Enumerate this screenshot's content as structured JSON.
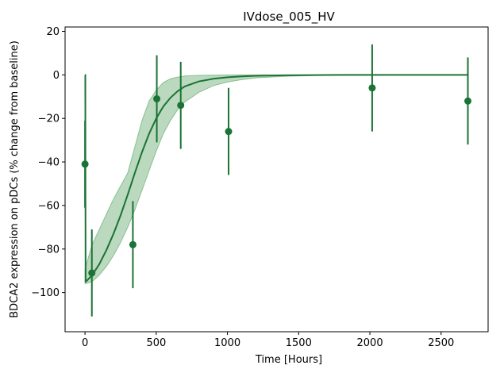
{
  "chart_data": {
    "type": "scatter",
    "title": "IVdose_005_HV",
    "xlabel": "Time [Hours]",
    "ylabel": "BDCA2 expression on pDCs (% change from baseline)",
    "xlim": [
      -140,
      2830
    ],
    "ylim": [
      -118,
      22
    ],
    "xticks": [
      0,
      500,
      1000,
      1500,
      2000,
      2500
    ],
    "yticks": [
      -100,
      -80,
      -60,
      -40,
      -20,
      0,
      20
    ],
    "grid": false,
    "colors": {
      "observed": "#1b7335",
      "fit_line": "#1b7335",
      "ci_band": "#2e8b3a"
    },
    "observed": {
      "x": [
        0,
        48,
        336,
        504,
        672,
        1008,
        2016,
        2688
      ],
      "y": [
        -41,
        -91,
        -78,
        -11,
        -14,
        -26,
        -6,
        -12
      ],
      "err": [
        20,
        20,
        20,
        20,
        20,
        20,
        20,
        20
      ]
    },
    "fit": {
      "x": [
        0,
        2,
        4,
        6,
        50,
        100,
        150,
        200,
        250,
        300,
        350,
        400,
        450,
        500,
        550,
        600,
        650,
        700,
        800,
        900,
        1000,
        1100,
        1200,
        1400,
        1600,
        1800,
        2000,
        2200,
        2400,
        2688
      ],
      "y": [
        0,
        0,
        -95,
        -95,
        -92,
        -87,
        -80.5,
        -73,
        -64.5,
        -55,
        -45,
        -35.5,
        -27,
        -20,
        -14.5,
        -10.5,
        -7.5,
        -5.3,
        -3,
        -1.8,
        -1.1,
        -0.7,
        -0.4,
        -0.2,
        -0.1,
        0,
        0,
        0,
        0,
        0
      ]
    },
    "ci_band": {
      "x": [
        0,
        50,
        100,
        150,
        200,
        250,
        300,
        350,
        400,
        450,
        500,
        550,
        600,
        650,
        700,
        800,
        900,
        1000,
        1100,
        1200,
        1400,
        1600,
        2000,
        2400,
        2688
      ],
      "upper": [
        -89,
        -78,
        -71,
        -64,
        -57,
        -51,
        -45,
        -33,
        -21,
        -12,
        -7,
        -3.5,
        -1.8,
        -1,
        -0.5,
        -0.2,
        -0.1,
        0,
        0,
        0,
        0,
        0,
        0,
        0,
        0
      ],
      "lower": [
        -96,
        -95,
        -92,
        -88,
        -83,
        -77,
        -70,
        -62,
        -53,
        -44,
        -35,
        -27,
        -21,
        -16,
        -12.5,
        -8,
        -5,
        -3.3,
        -2.2,
        -1.4,
        -0.7,
        -0.3,
        -0.1,
        0,
        0
      ]
    }
  }
}
